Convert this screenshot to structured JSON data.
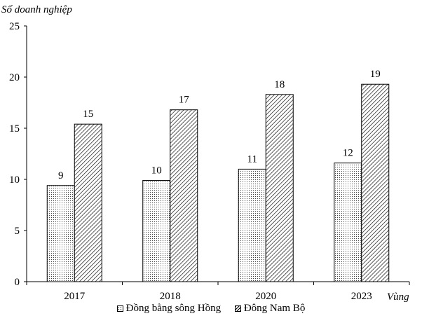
{
  "chart_data": {
    "type": "bar",
    "ylabel": "Số doanh nghiệp",
    "xlabel": "Vùng",
    "categories": [
      "2017",
      "2018",
      "2020",
      "2023"
    ],
    "series": [
      {
        "name": "Đồng bằng sông Hồng",
        "values": [
          9.4,
          9.9,
          11.0,
          11.6
        ],
        "labels": [
          "9",
          "10",
          "11",
          "12"
        ],
        "pattern": "dots"
      },
      {
        "name": "Đông Nam Bộ",
        "values": [
          15.4,
          16.8,
          18.3,
          19.3
        ],
        "labels": [
          "15",
          "17",
          "18",
          "19"
        ],
        "pattern": "hatch"
      }
    ],
    "ylim": [
      0,
      25
    ],
    "yticks": [
      "0",
      "5",
      "10",
      "15",
      "20",
      "25"
    ],
    "grid": false,
    "legend_position": "bottom-center",
    "colors": {
      "axis": "#000000",
      "fill": "#ffffff"
    }
  }
}
